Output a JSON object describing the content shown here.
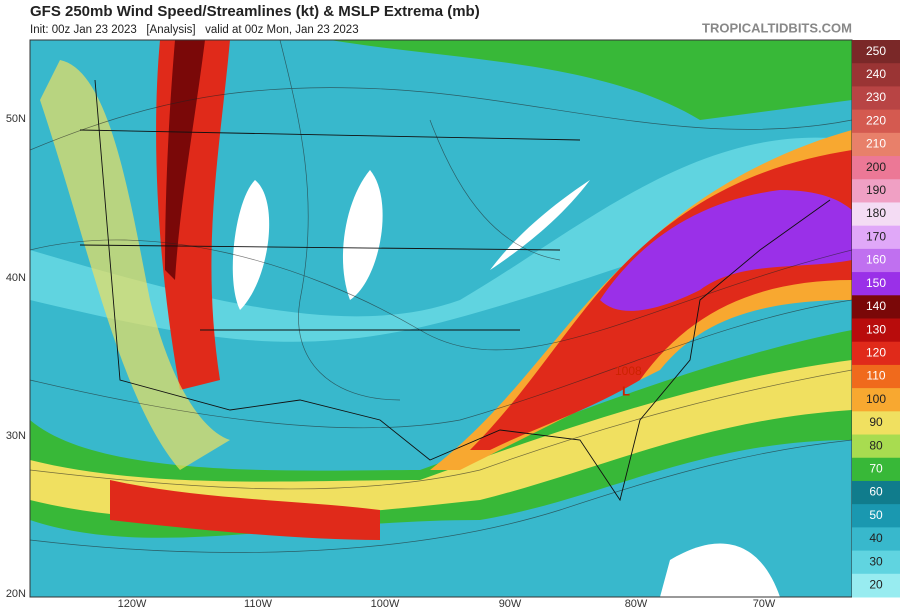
{
  "header": {
    "title": "GFS 250mb Wind Speed/Streamlines (kt) & MSLP Extrema (mb)",
    "subtitle": "Init: 00z Jan 23 2023   [Analysis]   valid at 00z Mon, Jan 23 2023",
    "source": "TROPICALTIDBITS.COM"
  },
  "map": {
    "lat_labels": [
      "50N",
      "40N",
      "30N",
      "20N"
    ],
    "lon_labels": [
      "120W",
      "110W",
      "100W",
      "90W",
      "80W",
      "70W"
    ],
    "extrema": [
      {
        "value": "1008",
        "symbol": "L"
      }
    ]
  },
  "colorbar": [
    {
      "value": 250,
      "color": "#7a2828"
    },
    {
      "value": 240,
      "color": "#9a3434"
    },
    {
      "value": 230,
      "color": "#b84444"
    },
    {
      "value": 220,
      "color": "#d45a50"
    },
    {
      "value": 210,
      "color": "#e8806a"
    },
    {
      "value": 200,
      "color": "#ec7896"
    },
    {
      "value": 190,
      "color": "#f0a0c4"
    },
    {
      "value": 180,
      "color": "#f4dcf4"
    },
    {
      "value": 170,
      "color": "#e0a8f8"
    },
    {
      "value": 160,
      "color": "#c070f0"
    },
    {
      "value": 150,
      "color": "#9a30e8"
    },
    {
      "value": 140,
      "color": "#7a0808"
    },
    {
      "value": 130,
      "color": "#b80c0c"
    },
    {
      "value": 120,
      "color": "#e02a1a"
    },
    {
      "value": 110,
      "color": "#f06a1c"
    },
    {
      "value": 100,
      "color": "#f8a830"
    },
    {
      "value": 90,
      "color": "#f0e060"
    },
    {
      "value": 80,
      "color": "#a8dc50"
    },
    {
      "value": 70,
      "color": "#38b838"
    },
    {
      "value": 60,
      "color": "#107c8c"
    },
    {
      "value": 50,
      "color": "#1a98b0"
    },
    {
      "value": 40,
      "color": "#38b8cc"
    },
    {
      "value": 30,
      "color": "#60d4e0"
    },
    {
      "value": 20,
      "color": "#98ecf0"
    }
  ]
}
